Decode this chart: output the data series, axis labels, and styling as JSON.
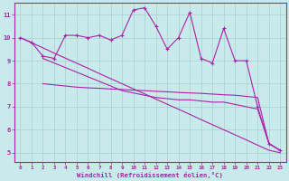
{
  "background_color": "#c8eaea",
  "grid_color": "#b0d4d4",
  "line_color": "#aa22aa",
  "x_values": [
    0,
    1,
    2,
    3,
    4,
    5,
    6,
    7,
    8,
    9,
    10,
    11,
    12,
    13,
    14,
    15,
    16,
    17,
    18,
    19,
    20,
    21,
    22,
    23
  ],
  "series_jagged": [
    10.0,
    9.8,
    9.2,
    9.1,
    10.1,
    10.1,
    10.0,
    10.1,
    9.9,
    10.1,
    11.2,
    11.3,
    10.5,
    9.5,
    10.0,
    11.1,
    9.1,
    8.9,
    10.4,
    9.0,
    9.0,
    7.0,
    5.4,
    5.1
  ],
  "series_diagonal": [
    10.0,
    9.78,
    9.56,
    9.33,
    9.11,
    8.89,
    8.67,
    8.44,
    8.22,
    8.0,
    7.78,
    7.56,
    7.33,
    7.11,
    6.89,
    6.67,
    6.44,
    6.22,
    6.0,
    5.78,
    5.56,
    5.33,
    5.11,
    5.0
  ],
  "series_flat1": [
    null,
    null,
    8.0,
    7.9,
    7.85,
    7.8,
    7.75,
    7.7,
    7.65,
    7.6,
    7.55,
    7.5,
    7.45,
    7.4,
    7.35,
    7.55,
    7.55,
    7.5,
    7.5,
    7.45,
    7.45,
    7.4,
    5.4,
    5.1
  ],
  "series_flat2": [
    null,
    null,
    8.0,
    7.9,
    7.85,
    7.8,
    7.75,
    7.7,
    7.65,
    7.6,
    7.55,
    7.5,
    7.45,
    7.4,
    7.35,
    7.55,
    7.55,
    7.5,
    7.5,
    7.45,
    7.45,
    7.4,
    5.4,
    5.1
  ],
  "series_flat3": [
    null,
    null,
    8.0,
    7.9,
    7.85,
    7.8,
    7.75,
    7.7,
    7.65,
    7.6,
    7.55,
    7.5,
    7.45,
    7.4,
    7.35,
    7.55,
    7.55,
    7.5,
    7.5,
    7.45,
    7.45,
    7.4,
    5.4,
    5.1
  ],
  "xlabel": "Windchill (Refroidissement éolien,°C)",
  "ylim": [
    4.6,
    11.5
  ],
  "xlim": [
    -0.5,
    23.5
  ],
  "yticks": [
    5,
    6,
    7,
    8,
    9,
    10,
    11
  ],
  "xticks": [
    0,
    1,
    2,
    3,
    4,
    5,
    6,
    7,
    8,
    9,
    10,
    11,
    12,
    13,
    14,
    15,
    16,
    17,
    18,
    19,
    20,
    21,
    22,
    23
  ]
}
